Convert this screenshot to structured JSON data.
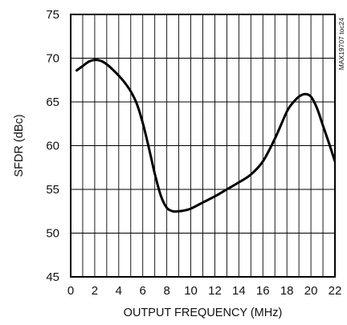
{
  "chart_data": {
    "type": "line",
    "title": "",
    "xlabel": "OUTPUT FREQUENCY (MHz)",
    "ylabel": "SFDR (dBc)",
    "xlim": [
      0,
      22
    ],
    "ylim": [
      45,
      75
    ],
    "xticks": [
      0,
      2,
      4,
      6,
      8,
      10,
      12,
      14,
      16,
      18,
      20,
      22
    ],
    "yticks": [
      45,
      50,
      55,
      60,
      65,
      70,
      75
    ],
    "grid": true,
    "legend": "none",
    "annotation": "MAX19707 toc24",
    "series": [
      {
        "color": "#000000",
        "x": [
          0.5,
          1.0,
          1.5,
          2.0,
          2.5,
          3.0,
          3.5,
          4.0,
          4.5,
          5.0,
          5.5,
          6.0,
          6.5,
          7.0,
          7.5,
          8.0,
          8.5,
          9.0,
          9.5,
          10.0,
          11.0,
          12.0,
          13.0,
          14.0,
          15.0,
          16.0,
          17.0,
          18.0,
          18.5,
          19.0,
          19.5,
          20.0,
          20.5,
          21.0,
          21.5,
          22.0
        ],
        "y": [
          68.6,
          69.1,
          69.6,
          69.8,
          69.7,
          69.3,
          68.7,
          68.0,
          67.2,
          66.2,
          64.8,
          62.6,
          59.8,
          56.8,
          54.3,
          52.9,
          52.5,
          52.5,
          52.6,
          52.8,
          53.5,
          54.2,
          55.0,
          55.8,
          56.7,
          58.2,
          60.8,
          63.9,
          64.9,
          65.6,
          65.9,
          65.6,
          64.3,
          62.3,
          60.3,
          58.2
        ]
      }
    ]
  }
}
